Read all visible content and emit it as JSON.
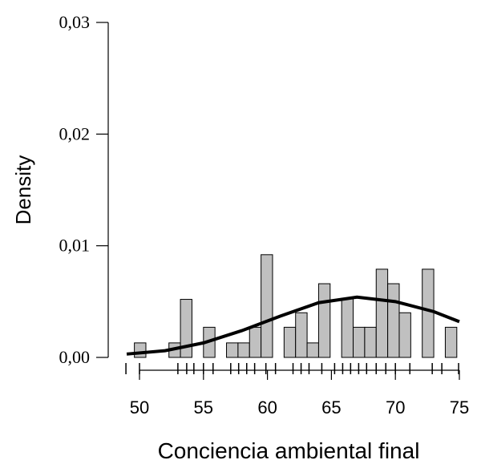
{
  "chart_data": {
    "type": "histogram",
    "xlabel": "Conciencia ambiental final",
    "ylabel": "Density",
    "bins": [
      49.6,
      50.5,
      51.4,
      52.3,
      53.2,
      54.1,
      55.0,
      55.9,
      56.8,
      57.7,
      58.6,
      59.5,
      60.4,
      61.3,
      62.2,
      63.1,
      64.0,
      64.9,
      65.8,
      66.7,
      67.6,
      68.5,
      69.4,
      70.3,
      71.2,
      72.1,
      73.0,
      73.9,
      74.8
    ],
    "values": [
      0.0013,
      0,
      0,
      0.0013,
      0.0052,
      0,
      0.0027,
      0,
      0.0013,
      0.0013,
      0.0027,
      0.0092,
      0,
      0.0027,
      0.004,
      0.0013,
      0.0066,
      0,
      0.0053,
      0.0027,
      0.0027,
      0.0079,
      0.0066,
      0.004,
      0,
      0.0079,
      0,
      0.0027
    ],
    "bar_color": "#c0c0c0",
    "curve": {
      "x": [
        49,
        52,
        55,
        58,
        61,
        64,
        67,
        70,
        73,
        75
      ],
      "values": [
        0.0003,
        0.0006,
        0.0013,
        0.0024,
        0.0037,
        0.0049,
        0.0054,
        0.005,
        0.0041,
        0.0032
      ],
      "color": "#000000"
    },
    "rug": [
      48.94,
      50,
      53,
      53.69,
      54.25,
      55,
      55.75,
      57.13,
      57.75,
      58.38,
      59,
      59.88,
      60.63,
      62,
      62.63,
      63.25,
      64.25,
      65.25,
      65.88,
      66.5,
      67.13,
      67.75,
      68.5,
      69.25,
      70,
      71.13,
      72.88,
      73.63,
      74.94
    ],
    "xlim": [
      50,
      75
    ],
    "xticks": [
      50,
      55,
      60,
      65,
      70,
      75
    ],
    "ylim": [
      0,
      0.03
    ],
    "yticks": [
      {
        "value": 0,
        "label": "0,00"
      },
      {
        "value": 0.01,
        "label": "0,01"
      },
      {
        "value": 0.02,
        "label": "0,02"
      },
      {
        "value": 0.03,
        "label": "0,03"
      }
    ]
  }
}
